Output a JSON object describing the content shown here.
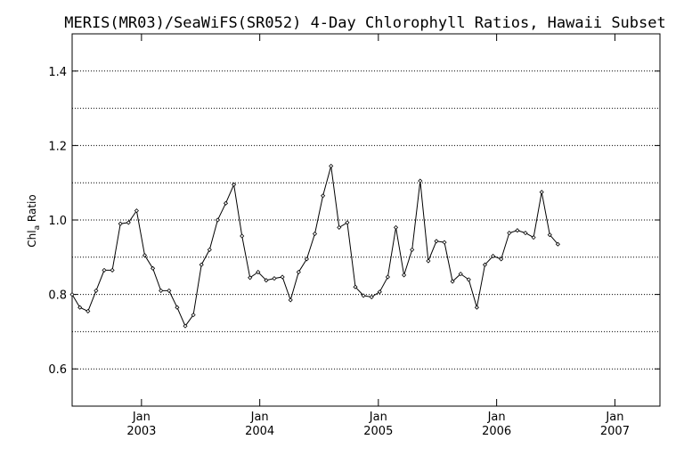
{
  "chart_data": {
    "type": "line",
    "title": "MERIS(MR03)/SeaWiFS(SR052) 4-Day Chlorophyll Ratios, Hawaii Subset",
    "ylabel": {
      "main": "Chl",
      "sub": "a",
      "rest": " Ratio"
    },
    "xlabel": "",
    "ylim": [
      0.5,
      1.5
    ],
    "xlim": [
      "2002-06-01",
      "2007-05-20"
    ],
    "yticks": [
      {
        "value": 0.6,
        "label": "0.6"
      },
      {
        "value": 0.8,
        "label": "0.8"
      },
      {
        "value": 1.0,
        "label": "1.0"
      },
      {
        "value": 1.2,
        "label": "1.2"
      },
      {
        "value": 1.4,
        "label": "1.4"
      }
    ],
    "ygrid": [
      0.6,
      0.7,
      0.8,
      0.9,
      1.0,
      1.1,
      1.2,
      1.3,
      1.4
    ],
    "xticks": [
      {
        "date": "2003-01-01",
        "label": "Jan",
        "year": "2003"
      },
      {
        "date": "2004-01-01",
        "label": "Jan",
        "year": "2004"
      },
      {
        "date": "2005-01-01",
        "label": "Jan",
        "year": "2005"
      },
      {
        "date": "2006-01-01",
        "label": "Jan",
        "year": "2006"
      },
      {
        "date": "2007-01-01",
        "label": "Jan",
        "year": "2007"
      }
    ],
    "grid": true,
    "series": [
      {
        "points": [
          [
            "2002-06-01",
            0.8
          ],
          [
            "2002-06-25",
            0.765
          ],
          [
            "2002-07-20",
            0.755
          ],
          [
            "2002-08-14",
            0.81
          ],
          [
            "2002-09-08",
            0.865
          ],
          [
            "2002-10-03",
            0.865
          ],
          [
            "2002-10-28",
            0.99
          ],
          [
            "2002-11-22",
            0.993
          ],
          [
            "2002-12-17",
            1.025
          ],
          [
            "2003-01-11",
            0.905
          ],
          [
            "2003-02-05",
            0.87
          ],
          [
            "2003-03-02",
            0.81
          ],
          [
            "2003-03-27",
            0.81
          ],
          [
            "2003-04-21",
            0.765
          ],
          [
            "2003-05-16",
            0.715
          ],
          [
            "2003-06-10",
            0.745
          ],
          [
            "2003-07-05",
            0.88
          ],
          [
            "2003-07-30",
            0.92
          ],
          [
            "2003-08-24",
            1.0
          ],
          [
            "2003-09-18",
            1.045
          ],
          [
            "2003-10-13",
            1.095
          ],
          [
            "2003-11-07",
            0.957
          ],
          [
            "2003-12-02",
            0.845
          ],
          [
            "2003-12-27",
            0.86
          ],
          [
            "2004-01-21",
            0.838
          ],
          [
            "2004-02-15",
            0.843
          ],
          [
            "2004-03-11",
            0.847
          ],
          [
            "2004-04-05",
            0.785
          ],
          [
            "2004-04-30",
            0.86
          ],
          [
            "2004-05-25",
            0.895
          ],
          [
            "2004-06-19",
            0.963
          ],
          [
            "2004-07-14",
            1.065
          ],
          [
            "2004-08-08",
            1.145
          ],
          [
            "2004-09-02",
            0.98
          ],
          [
            "2004-09-27",
            0.993
          ],
          [
            "2004-10-22",
            0.82
          ],
          [
            "2004-11-16",
            0.797
          ],
          [
            "2004-12-11",
            0.793
          ],
          [
            "2005-01-05",
            0.807
          ],
          [
            "2005-01-30",
            0.847
          ],
          [
            "2005-02-24",
            0.98
          ],
          [
            "2005-03-21",
            0.852
          ],
          [
            "2005-04-15",
            0.92
          ],
          [
            "2005-05-10",
            1.105
          ],
          [
            "2005-06-04",
            0.89
          ],
          [
            "2005-06-29",
            0.943
          ],
          [
            "2005-07-24",
            0.94
          ],
          [
            "2005-08-18",
            0.835
          ],
          [
            "2005-09-12",
            0.855
          ],
          [
            "2005-10-07",
            0.84
          ],
          [
            "2005-11-01",
            0.765
          ],
          [
            "2005-11-26",
            0.88
          ],
          [
            "2005-12-21",
            0.903
          ],
          [
            "2006-01-15",
            0.895
          ],
          [
            "2006-02-09",
            0.965
          ],
          [
            "2006-03-06",
            0.972
          ],
          [
            "2006-03-31",
            0.965
          ],
          [
            "2006-04-25",
            0.953
          ],
          [
            "2006-05-20",
            1.075
          ],
          [
            "2006-06-14",
            0.96
          ],
          [
            "2006-07-09",
            0.935
          ]
        ]
      }
    ]
  }
}
